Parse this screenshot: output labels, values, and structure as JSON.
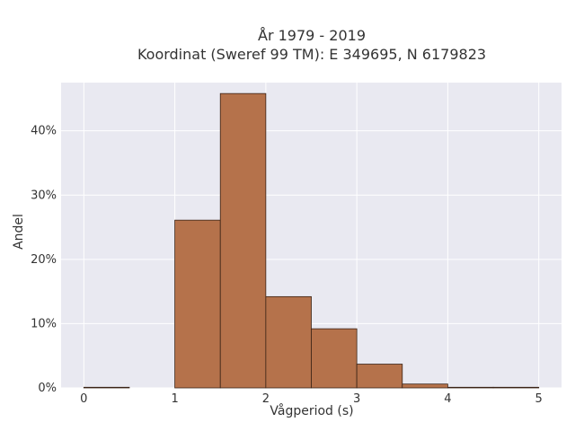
{
  "chart_data": {
    "type": "bar",
    "title_line1": "År 1979 - 2019",
    "title_line2": "Koordinat (Sweref 99 TM): E 349695, N 6179823",
    "xlabel": "Vågperiod (s)",
    "ylabel": "Andel",
    "bin_width": 0.5,
    "bins": [
      {
        "x0": 0.0,
        "x1": 0.5,
        "value": 0.1
      },
      {
        "x0": 0.5,
        "x1": 1.0,
        "value": 0.0
      },
      {
        "x0": 1.0,
        "x1": 1.5,
        "value": 26.1
      },
      {
        "x0": 1.5,
        "x1": 2.0,
        "value": 45.8
      },
      {
        "x0": 2.0,
        "x1": 2.5,
        "value": 14.2
      },
      {
        "x0": 2.5,
        "x1": 3.0,
        "value": 9.2
      },
      {
        "x0": 3.0,
        "x1": 3.5,
        "value": 3.7
      },
      {
        "x0": 3.5,
        "x1": 4.0,
        "value": 0.6
      },
      {
        "x0": 4.0,
        "x1": 4.5,
        "value": 0.1
      },
      {
        "x0": 4.5,
        "x1": 5.0,
        "value": 0.1
      }
    ],
    "xlim": [
      -0.25,
      5.25
    ],
    "ylim": [
      0,
      47.5
    ],
    "xticks": [
      0,
      1,
      2,
      3,
      4,
      5
    ],
    "xtick_labels": [
      "0",
      "1",
      "2",
      "3",
      "4",
      "5"
    ],
    "yticks": [
      0,
      10,
      20,
      30,
      40
    ],
    "ytick_labels": [
      "0%",
      "10%",
      "20%",
      "30%",
      "40%"
    ],
    "grid": true,
    "colors": {
      "bar_fill": "#b5724b",
      "bar_edge": "#3a2316",
      "plot_bg": "#e9e9f1",
      "grid": "#ffffff"
    }
  }
}
